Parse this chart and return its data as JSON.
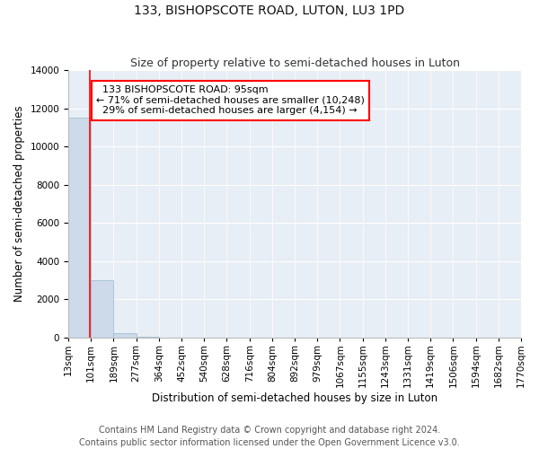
{
  "title": "133, BISHOPSCOTE ROAD, LUTON, LU3 1PD",
  "subtitle": "Size of property relative to semi-detached houses in Luton",
  "xlabel": "Distribution of semi-detached houses by size in Luton",
  "ylabel": "Number of semi-detached properties",
  "bar_values": [
    11500,
    3000,
    200,
    50,
    10,
    5,
    2,
    1,
    1,
    1,
    1,
    1,
    1,
    1,
    1,
    1,
    1,
    1,
    1,
    1
  ],
  "bin_labels": [
    "13sqm",
    "101sqm",
    "189sqm",
    "277sqm",
    "364sqm",
    "452sqm",
    "540sqm",
    "628sqm",
    "716sqm",
    "804sqm",
    "892sqm",
    "979sqm",
    "1067sqm",
    "1155sqm",
    "1243sqm",
    "1331sqm",
    "1419sqm",
    "1506sqm",
    "1594sqm",
    "1682sqm",
    "1770sqm"
  ],
  "bar_color": "#ccdaea",
  "bar_edge_color": "#9ab8cc",
  "ylim": [
    0,
    14000
  ],
  "yticks": [
    0,
    2000,
    4000,
    6000,
    8000,
    10000,
    12000,
    14000
  ],
  "property_sqm": 95,
  "property_label": "133 BISHOPSCOTE ROAD: 95sqm",
  "pct_smaller": 71,
  "pct_larger": 29,
  "count_smaller": 10248,
  "count_larger": 4154,
  "annotation_box_color": "red",
  "footer_line1": "Contains HM Land Registry data © Crown copyright and database right 2024.",
  "footer_line2": "Contains public sector information licensed under the Open Government Licence v3.0.",
  "background_color": "#e8eef5",
  "grid_color": "#ffffff",
  "title_fontsize": 10,
  "subtitle_fontsize": 9,
  "axis_label_fontsize": 8.5,
  "tick_fontsize": 7.5,
  "annotation_fontsize": 8,
  "footer_fontsize": 7
}
